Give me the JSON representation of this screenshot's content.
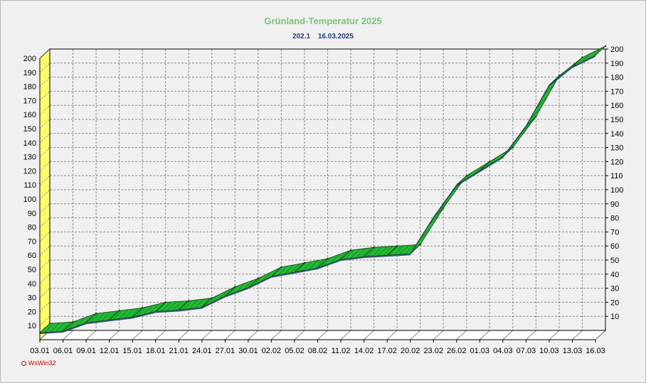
{
  "title": "Grünland-Temperatur  2025",
  "subtitle": {
    "value": "202.1",
    "date": "16.03.2025"
  },
  "credit": "WsWin32",
  "colors": {
    "area_fill": "#22bb33",
    "area_edge": "#1a6a25",
    "bottom_band": "#1f3d66",
    "left_wall": "#ffff66",
    "grid": "#8a8a8a",
    "title": "#7ac47a",
    "subtitle": "#1f3f7a",
    "credit": "#cc0000"
  },
  "chart_data": {
    "type": "area",
    "title": "Grünland-Temperatur  2025",
    "subtitle": "202.1  16.03.2025",
    "xlabel": "",
    "ylabel": "",
    "ylim": [
      0,
      200
    ],
    "grid": true,
    "categories": [
      "03.01",
      "06.01",
      "09.01",
      "12.01",
      "15.01",
      "18.01",
      "21.01",
      "24.01",
      "27.01",
      "30.01",
      "02.02",
      "05.02",
      "08.02",
      "11.02",
      "14.02",
      "17.02",
      "20.02",
      "23.02",
      "26.02",
      "01.03",
      "04.03",
      "07.03",
      "10.03",
      "13.03",
      "16.03"
    ],
    "left_ticks": [
      10,
      20,
      30,
      40,
      50,
      60,
      70,
      80,
      90,
      100,
      110,
      120,
      130,
      140,
      150,
      160,
      170,
      180,
      190,
      200
    ],
    "right_ticks": [
      10,
      20,
      30,
      40,
      50,
      60,
      70,
      80,
      90,
      100,
      110,
      120,
      130,
      140,
      150,
      160,
      170,
      180,
      190,
      200
    ],
    "series": [
      {
        "values": [
          5,
          6,
          12,
          14,
          16,
          20,
          21,
          23,
          31,
          37,
          45,
          48,
          51,
          57,
          59,
          60,
          61,
          87,
          110,
          120,
          130,
          152,
          181,
          194,
          202.1
        ]
      }
    ]
  }
}
